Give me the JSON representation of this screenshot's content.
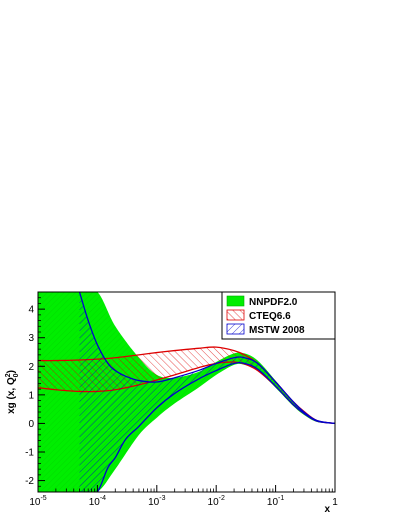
{
  "chart_data": {
    "type": "area",
    "title": "",
    "xlabel": "x",
    "ylabel_main": "xg (x, Q",
    "ylabel_sup": "2",
    "ylabel_sub": "0",
    "ylabel_close": ")",
    "xscale": "log",
    "xlim": [
      1e-05,
      1
    ],
    "ylim": [
      -2.4,
      4.6
    ],
    "grid": false,
    "legend_position": "top-right",
    "x_ticks": [
      {
        "base": "10",
        "exp": "-5",
        "value": 1e-05
      },
      {
        "base": "10",
        "exp": "-4",
        "value": 0.0001
      },
      {
        "base": "10",
        "exp": "-3",
        "value": 0.001
      },
      {
        "base": "10",
        "exp": "-2",
        "value": 0.01
      },
      {
        "base": "10",
        "exp": "-1",
        "value": 0.1
      },
      {
        "base": "1",
        "exp": "",
        "value": 1
      }
    ],
    "y_ticks": [
      {
        "label": "-2",
        "value": -2
      },
      {
        "label": "-1",
        "value": -1
      },
      {
        "label": "0",
        "value": 0
      },
      {
        "label": "1",
        "value": 1
      },
      {
        "label": "2",
        "value": 2
      },
      {
        "label": "3",
        "value": 3
      },
      {
        "label": "4",
        "value": 4
      }
    ],
    "series": [
      {
        "name": "NNPDF2.0",
        "style": "solid",
        "color": "#00ee00",
        "x": [
          1e-05,
          2e-05,
          3e-05,
          5e-05,
          0.0001,
          0.0002,
          0.0005,
          0.001,
          0.002,
          0.005,
          0.01,
          0.02,
          0.03,
          0.05,
          0.1,
          0.2,
          0.3,
          0.5,
          1
        ],
        "upper": [
          4.6,
          4.6,
          4.6,
          4.6,
          4.6,
          3.4,
          2.3,
          1.7,
          1.6,
          1.8,
          2.15,
          2.45,
          2.45,
          2.2,
          1.5,
          0.75,
          0.4,
          0.1,
          0
        ],
        "lower": [
          -2.4,
          -2.4,
          -2.4,
          -2.4,
          -2.4,
          -1.6,
          -0.4,
          0.2,
          0.7,
          1.25,
          1.7,
          2.05,
          2.05,
          1.85,
          1.25,
          0.6,
          0.3,
          0.05,
          0
        ]
      },
      {
        "name": "CTEQ6.6",
        "style": "hatch",
        "color": "#dd0000",
        "x": [
          1e-05,
          2e-05,
          5e-05,
          0.0001,
          0.0002,
          0.0005,
          0.001,
          0.002,
          0.005,
          0.01,
          0.02,
          0.03,
          0.05,
          0.1,
          0.2,
          0.3,
          0.5,
          1
        ],
        "upper": [
          2.2,
          2.2,
          2.22,
          2.25,
          2.3,
          2.4,
          2.48,
          2.55,
          2.63,
          2.67,
          2.55,
          2.4,
          2.1,
          1.45,
          0.75,
          0.42,
          0.1,
          0
        ],
        "lower": [
          1.25,
          1.18,
          1.12,
          1.12,
          1.18,
          1.35,
          1.52,
          1.7,
          1.95,
          2.1,
          2.15,
          2.08,
          1.85,
          1.3,
          0.65,
          0.35,
          0.08,
          0
        ]
      },
      {
        "name": "MSTW 2008",
        "style": "hatch",
        "color": "#0000cc",
        "x": [
          5e-05,
          7e-05,
          0.0001,
          0.00015,
          0.0002,
          0.0003,
          0.0005,
          0.001,
          0.002,
          0.005,
          0.01,
          0.02,
          0.03,
          0.05,
          0.1,
          0.2,
          0.3,
          0.5,
          1
        ],
        "upper": [
          4.6,
          3.6,
          2.75,
          2.1,
          1.85,
          1.65,
          1.5,
          1.45,
          1.6,
          1.85,
          2.1,
          2.3,
          2.3,
          2.1,
          1.45,
          0.75,
          0.4,
          0.1,
          0
        ],
        "lower": [
          -2.4,
          -2.4,
          -2.4,
          -1.55,
          -1.2,
          -0.55,
          -0.1,
          0.55,
          1.05,
          1.55,
          1.85,
          2.1,
          2.1,
          1.9,
          1.3,
          0.65,
          0.35,
          0.08,
          0
        ]
      }
    ]
  }
}
